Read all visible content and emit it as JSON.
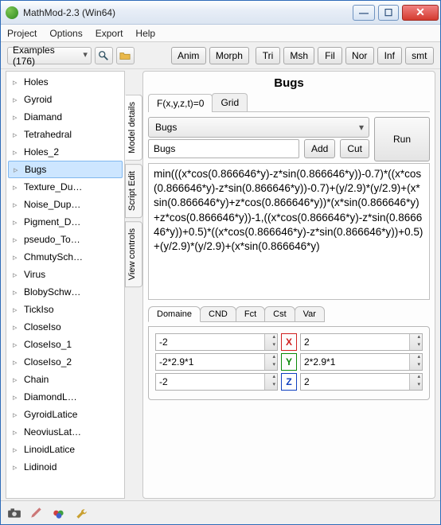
{
  "window": {
    "title": "MathMod-2.3 (Win64)"
  },
  "menu": {
    "project": "Project",
    "options": "Options",
    "export": "Export",
    "help": "Help"
  },
  "toolbar": {
    "examples_label": "Examples (176)",
    "anim": "Anim",
    "morph": "Morph",
    "tri": "Tri",
    "msh": "Msh",
    "fil": "Fil",
    "nor": "Nor",
    "inf": "Inf",
    "smt": "smt"
  },
  "tree": {
    "items": [
      "Holes",
      "Gyroid",
      "Diamand",
      "Tetrahedral",
      "Holes_2",
      "Bugs",
      "Texture_Du…",
      "Noise_Dup…",
      "Pigment_D…",
      "pseudo_To…",
      "ChmutySch…",
      "Virus",
      "BlobySchw…",
      "TickIso",
      "CloseIso",
      "CloseIso_1",
      "CloseIso_2",
      "Chain",
      "DiamondL…",
      "GyroidLatice",
      "NeoviusLat…",
      "LinoidLatice",
      "Lidinoid"
    ],
    "selected_index": 5
  },
  "side_tabs": {
    "model_details": "Model details",
    "script_edit": "Script Edit",
    "view_controls": "View controls"
  },
  "model": {
    "title": "Bugs",
    "eq_tab": "F(x,y,z,t)=0",
    "grid_tab": "Grid",
    "combo_value": "Bugs",
    "run": "Run",
    "name_input": "Bugs",
    "add": "Add",
    "cut": "Cut",
    "formula_text": "min(((x*cos(0.866646*y)-z*sin(0.866646*y))-0.7)*((x*cos(0.866646*y)-z*sin(0.866646*y))-0.7)+(y/2.9)*(y/2.9)+(x*sin(0.866646*y)+z*cos(0.866646*y))*(x*sin(0.866646*y)+z*cos(0.866646*y))-1,((x*cos(0.866646*y)-z*sin(0.866646*y))+0.5)*((x*cos(0.866646*y)-z*sin(0.866646*y))+0.5)+(y/2.9)*(y/2.9)+(x*sin(0.866646*y)"
  },
  "domain_tabs": {
    "domaine": "Domaine",
    "cnd": "CND",
    "fct": "Fct",
    "cst": "Cst",
    "var": "Var"
  },
  "domain_grid": {
    "x_min": "-2",
    "x_lbl": "X",
    "x_max": "2",
    "y_min": "-2*2.9*1",
    "y_lbl": "Y",
    "y_max": "2*2.9*1",
    "z_min": "-2",
    "z_lbl": "Z",
    "z_max": "2"
  },
  "colors": {
    "selection_bg": "#cde6ff",
    "selection_border": "#7fb7ef",
    "x": "#d02020",
    "y": "#0a8a0a",
    "z": "#1040c0"
  }
}
